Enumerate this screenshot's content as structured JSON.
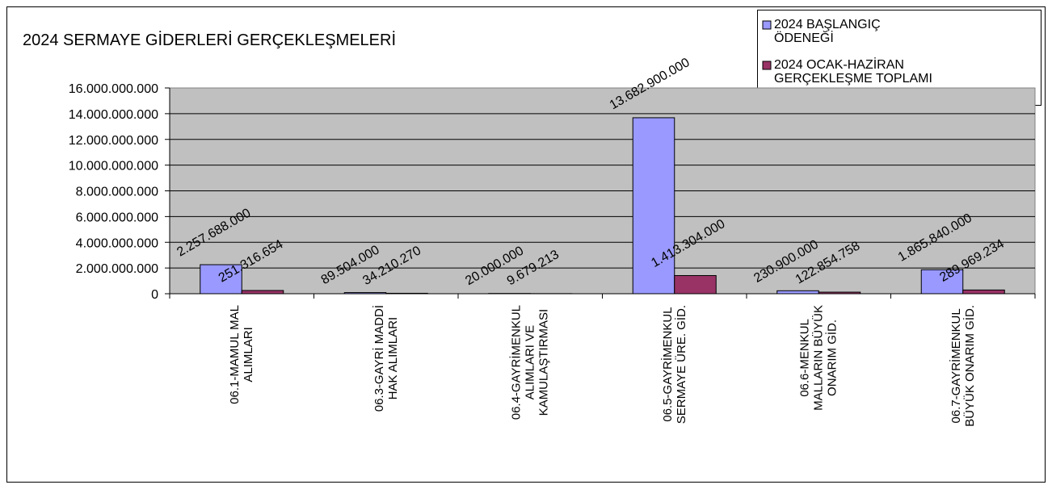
{
  "chart_data": {
    "type": "bar",
    "title": "2024 SERMAYE GİDERLERİ GERÇEKLEŞMELERİ",
    "categories": [
      "06.1-MAMUL MAL\nALIMLARI",
      "06.3-GAYRİ MADDİ\nHAK ALIMLARI",
      "06.4-GAYRİMENKUL\nALIMLARI VE\nKAMULAŞTIRMASI",
      "06.5-GAYRİMENKUL\nSERMAYE ÜRE. GİD.",
      "06.6-MENKUL\nMALLARIN BÜYÜK\nONARIM GİD.",
      "06.7-GAYRİMENKUL\nBÜYÜK ONARIM GİD."
    ],
    "series": [
      {
        "name": "2024 BAŞLANGIÇ\nÖDENEĞİ",
        "color": "#9999ff",
        "values": [
          2257688000,
          89504000,
          20000000,
          13682900000,
          230900000,
          1865840000
        ],
        "value_labels": [
          "2.257.688.000",
          "89.504.000",
          "20.000.000",
          "13.682.900.000",
          "230.900.000",
          "1.865.840.000"
        ]
      },
      {
        "name": "2024 OCAK-HAZİRAN\nGERÇEKLEŞME TOPLAMI",
        "color": "#993366",
        "values": [
          251316654,
          34210270,
          9679213,
          1413304000,
          122854758,
          289969234
        ],
        "value_labels": [
          "251.316.654",
          "34.210.270",
          "9.679.213",
          "1.413.304.000",
          "122.854.758",
          "289.969.234"
        ]
      }
    ],
    "ylim": [
      0,
      16000000000
    ],
    "yticks": [
      0,
      {
        "value": 2000000000,
        "label": "2.000.000.000"
      },
      {
        "value": 4000000000,
        "label": "4.000.000.000"
      },
      {
        "value": 6000000000,
        "label": "6.000.000.000"
      },
      {
        "value": 8000000000,
        "label": "8.000.000.000"
      },
      {
        "value": 10000000000,
        "label": "10.000.000.000"
      },
      {
        "value": 12000000000,
        "label": "12.000.000.000"
      },
      {
        "value": 14000000000,
        "label": "14.000.000.000"
      },
      {
        "value": 16000000000,
        "label": "16.000.000.000"
      }
    ],
    "grid": true,
    "legend": "top-right",
    "plot_background": "#c0c0c0"
  }
}
